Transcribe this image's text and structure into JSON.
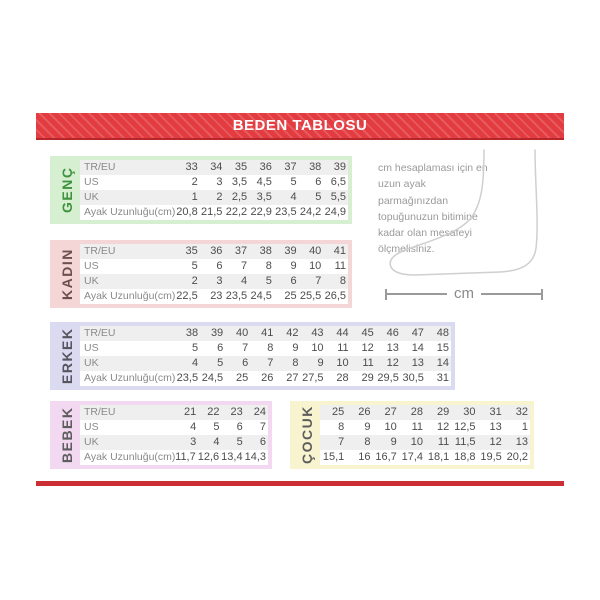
{
  "header": {
    "title": "BEDEN TABLOSU"
  },
  "colors": {
    "header_red": "#e23b40",
    "footer_red": "#cb2f33",
    "row_stripe": "#efefef",
    "number_text": "#4d4d4d",
    "row_label_text": "#8a8a8a",
    "note_text": "#9a9a9a",
    "foot_outline": "#cfcfcf"
  },
  "tables": [
    {
      "id": "genc",
      "label": "GENÇ",
      "bg": "#d5efd0",
      "label_color": "#3f923f",
      "show_row_labels": true,
      "rows": [
        {
          "label": "TR/EU",
          "values": [
            "33",
            "34",
            "35",
            "36",
            "37",
            "38",
            "39"
          ]
        },
        {
          "label": "US",
          "values": [
            "2",
            "3",
            "3,5",
            "4,5",
            "5",
            "6",
            "6,5"
          ]
        },
        {
          "label": "UK",
          "values": [
            "1",
            "2",
            "2,5",
            "3,5",
            "4",
            "5",
            "5,5"
          ]
        },
        {
          "label": "Ayak Uzunluğu(cm)",
          "values": [
            "20,8",
            "21,5",
            "22,2",
            "22,9",
            "23,5",
            "24,2",
            "24,9"
          ]
        }
      ]
    },
    {
      "id": "kadin",
      "label": "KADIN",
      "bg": "#f5d6d6",
      "label_color": "#6b4f4f",
      "show_row_labels": true,
      "rows": [
        {
          "label": "TR/EU",
          "values": [
            "35",
            "36",
            "37",
            "38",
            "39",
            "40",
            "41"
          ]
        },
        {
          "label": "US",
          "values": [
            "5",
            "6",
            "7",
            "8",
            "9",
            "10",
            "11"
          ]
        },
        {
          "label": "UK",
          "values": [
            "2",
            "3",
            "4",
            "5",
            "6",
            "7",
            "8"
          ]
        },
        {
          "label": "Ayak Uzunluğu(cm)",
          "values": [
            "22,5",
            "23",
            "23,5",
            "24,5",
            "25",
            "25,5",
            "26,5"
          ]
        }
      ]
    },
    {
      "id": "erkek",
      "label": "ERKEK",
      "bg": "#dadaf0",
      "label_color": "#565660",
      "show_row_labels": true,
      "rows": [
        {
          "label": "TR/EU",
          "values": [
            "38",
            "39",
            "40",
            "41",
            "42",
            "43",
            "44",
            "45",
            "46",
            "47",
            "48"
          ]
        },
        {
          "label": "US",
          "values": [
            "5",
            "6",
            "7",
            "8",
            "9",
            "10",
            "11",
            "12",
            "13",
            "14",
            "15"
          ]
        },
        {
          "label": "UK",
          "values": [
            "4",
            "5",
            "6",
            "7",
            "8",
            "9",
            "10",
            "11",
            "12",
            "13",
            "14"
          ]
        },
        {
          "label": "Ayak Uzunluğu(cm)",
          "values": [
            "23,5",
            "24,5",
            "25",
            "26",
            "27",
            "27,5",
            "28",
            "29",
            "29,5",
            "30,5",
            "31"
          ]
        }
      ]
    },
    {
      "id": "bebek",
      "label": "BEBEK",
      "bg": "#f2d8f0",
      "label_color": "#5d5d5d",
      "show_row_labels": true,
      "rows": [
        {
          "label": "TR/EU",
          "values": [
            "21",
            "22",
            "23",
            "24"
          ]
        },
        {
          "label": "US",
          "values": [
            "4",
            "5",
            "6",
            "7"
          ]
        },
        {
          "label": "UK",
          "values": [
            "3",
            "4",
            "5",
            "6"
          ]
        },
        {
          "label": "Ayak Uzunluğu(cm)",
          "values": [
            "11,7",
            "12,6",
            "13,4",
            "14,3"
          ]
        }
      ]
    },
    {
      "id": "cocuk",
      "label": "ÇOCUK",
      "bg": "#f8f4d0",
      "label_color": "#5d5d5d",
      "show_row_labels": false,
      "rows": [
        {
          "label": "",
          "values": [
            "25",
            "26",
            "27",
            "28",
            "29",
            "30",
            "31",
            "32"
          ]
        },
        {
          "label": "",
          "values": [
            "8",
            "9",
            "10",
            "11",
            "12",
            "12,5",
            "13",
            "1"
          ]
        },
        {
          "label": "",
          "values": [
            "7",
            "8",
            "9",
            "10",
            "11",
            "11,5",
            "12",
            "13"
          ]
        },
        {
          "label": "",
          "values": [
            "15,1",
            "16",
            "16,7",
            "17,4",
            "18,1",
            "18,8",
            "19,5",
            "20,2"
          ]
        }
      ]
    }
  ],
  "note": {
    "text": "cm hesaplaması için en uzun ayak parmağınızdan topuğunuzun bitimine kadar olan mesafeyi ölçmelisiniz."
  },
  "measure": {
    "unit_label": "cm"
  }
}
